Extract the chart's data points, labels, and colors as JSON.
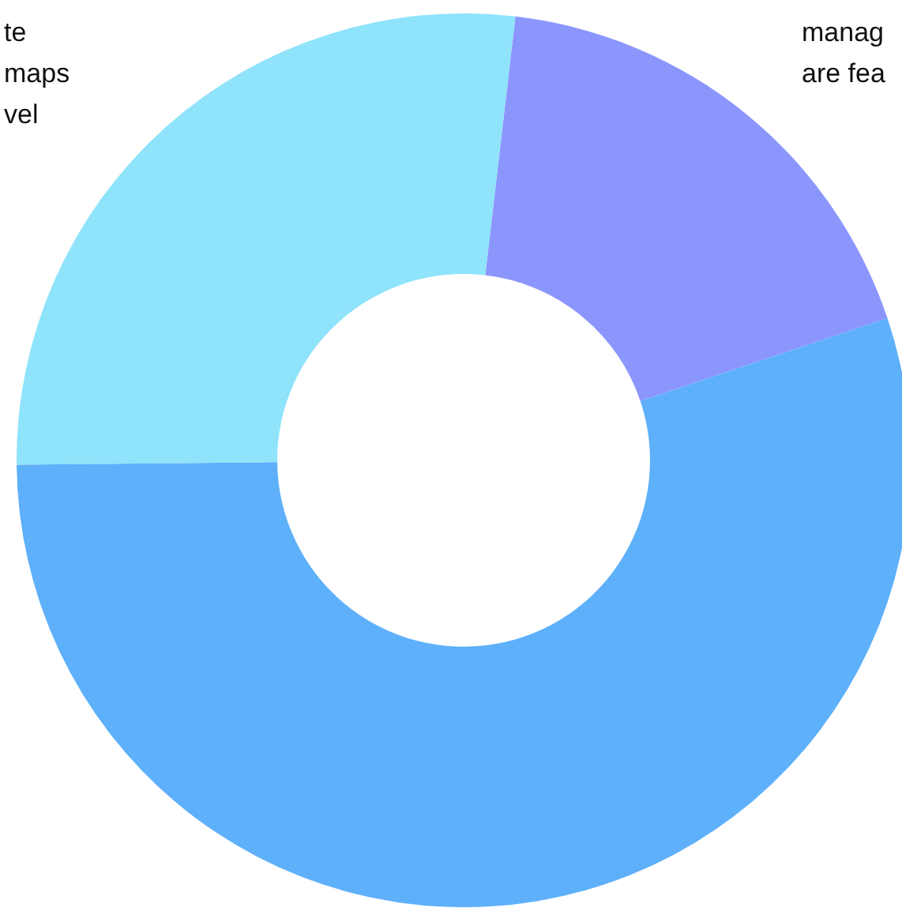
{
  "chart_data": {
    "type": "donut",
    "categories": [
      null,
      null,
      null
    ],
    "values": [
      18,
      55,
      27
    ],
    "colors": [
      "#8b96fd",
      "#5eb0fa",
      "#8fe3fb"
    ],
    "annotations": [
      "te\nmaps\nvel",
      "manag\nare fea"
    ]
  }
}
